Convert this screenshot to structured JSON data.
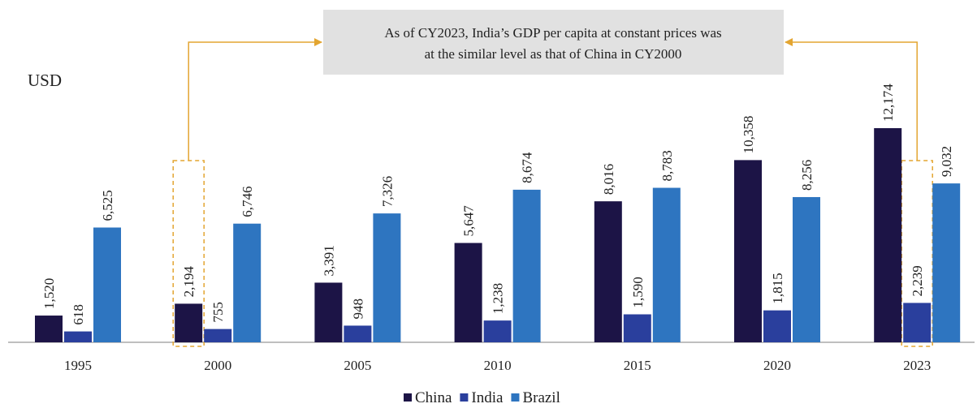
{
  "chart_data": {
    "type": "bar",
    "unit_label": "USD",
    "annotation": [
      "As of CY2023, India’s GDP per capita at constant prices was",
      "at the similar level as that of China in CY2000"
    ],
    "categories": [
      "1995",
      "2000",
      "2005",
      "2010",
      "2015",
      "2020",
      "2023"
    ],
    "series": [
      {
        "name": "China",
        "color": "#1c1446",
        "values": [
          1520,
          2194,
          3391,
          5647,
          8016,
          10358,
          12174
        ],
        "value_labels": [
          "1,520",
          "2,194",
          "3,391",
          "5,647",
          "8,016",
          "10,358",
          "12,174"
        ]
      },
      {
        "name": "India",
        "color": "#2a3f9d",
        "values": [
          618,
          755,
          948,
          1238,
          1590,
          1815,
          2239
        ],
        "value_labels": [
          "618",
          "755",
          "948",
          "1,238",
          "1,590",
          "1,815",
          "2,239"
        ]
      },
      {
        "name": "Brazil",
        "color": "#2e75c0",
        "values": [
          6525,
          6746,
          7326,
          8674,
          8783,
          8256,
          9032
        ],
        "value_labels": [
          "6,525",
          "6,746",
          "7,326",
          "8,674",
          "8,783",
          "8,256",
          "9,032"
        ]
      }
    ],
    "highlight_color": "#e3a531",
    "legend": "bottom"
  }
}
